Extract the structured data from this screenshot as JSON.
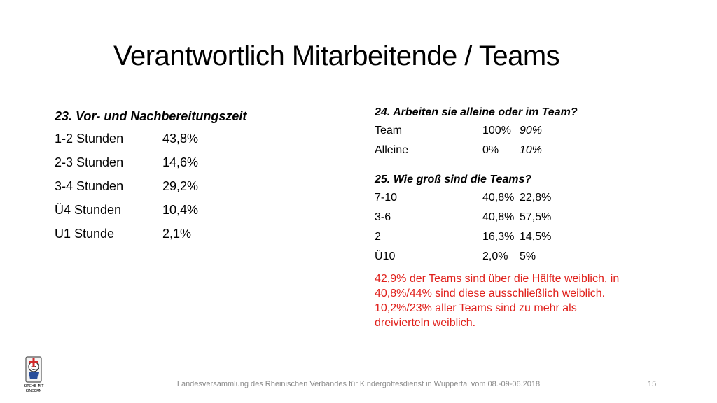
{
  "title": "Verantwortlich Mitarbeitende / Teams",
  "q23": {
    "question": "23. Vor- und Nachbereitungszeit",
    "rows": [
      {
        "label": "1-2 Stunden",
        "value": "43,8%"
      },
      {
        "label": "2-3 Stunden",
        "value": "14,6%"
      },
      {
        "label": "3-4 Stunden",
        "value": "29,2%"
      },
      {
        "label": "Ü4 Stunden",
        "value": "10,4%"
      },
      {
        "label": "U1 Stunde",
        "value": "2,1%"
      }
    ]
  },
  "q24": {
    "question": "24. Arbeiten sie alleine oder im Team?",
    "rows": [
      {
        "label": "Team",
        "value": "100%",
        "value2": "90%"
      },
      {
        "label": "Alleine",
        "value": "0%",
        "value2": "10%"
      }
    ]
  },
  "q25": {
    "question": "25. Wie groß sind die Teams?",
    "rows": [
      {
        "label": "7-10",
        "value": "40,8%",
        "value2": "22,8%"
      },
      {
        "label": "3-6",
        "value": "40,8%",
        "value2": "57,5%"
      },
      {
        "label": "2",
        "value": "16,3%",
        "value2": "14,5%"
      },
      {
        "label": "Ü10",
        "value": "2,0%",
        "value2": "5%"
      }
    ]
  },
  "note_lines": [
    "42,9% der Teams sind über die Hälfte weiblich, in",
    "40,8%/44% sind diese ausschließlich weiblich.",
    "10,2%/23% aller Teams sind zu mehr als",
    "dreivierteln weiblich."
  ],
  "footer": "Landesversammlung des Rheinischen Verbandes für Kindergottesdienst in Wuppertal vom 08.-09-06.2018",
  "page_number": "15",
  "logo": {
    "line1": "KIRCHE MIT",
    "line2": "KINDERN"
  },
  "colors": {
    "note": "#e0201b",
    "footer": "#8a8a8a"
  }
}
